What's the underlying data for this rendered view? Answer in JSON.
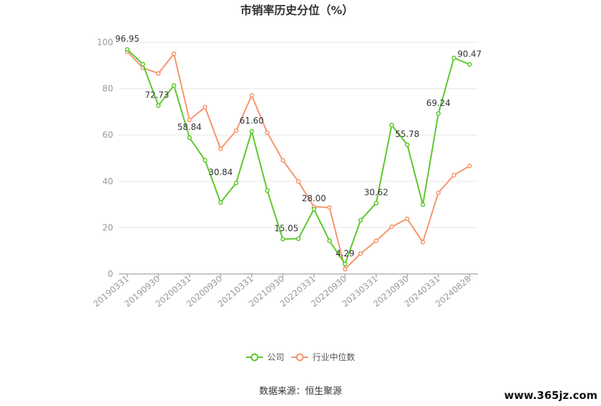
{
  "chart_data": {
    "type": "line",
    "title": "市销率历史分位（%）",
    "tick_labels": [
      "20190331",
      "20190930",
      "20200331",
      "20200930",
      "20210331",
      "20210930",
      "20220331",
      "20220930",
      "20230331",
      "20230930",
      "20240331",
      "20240828"
    ],
    "yticks": [
      "0",
      "20",
      "40",
      "60",
      "80",
      "100"
    ],
    "ylim": [
      0,
      100
    ],
    "grid": true,
    "legend_position": "bottom",
    "series": [
      {
        "name": "公司",
        "color": "#5cc72b",
        "values": [
          96.95,
          90.6,
          72.73,
          81.4,
          58.84,
          49.1,
          30.84,
          39.3,
          61.6,
          36.0,
          15.05,
          15.2,
          28.0,
          14.3,
          4.29,
          23.2,
          30.62,
          64.3,
          55.78,
          29.9,
          69.24,
          93.3,
          90.47
        ],
        "data_labels": [
          "96.95",
          "",
          "72.73",
          "",
          "58.84",
          "",
          "30.84",
          "",
          "61.60",
          "",
          "15.05",
          "",
          "28.00",
          "",
          "4.29",
          "",
          "30.62",
          "",
          "55.78",
          "",
          "69.24",
          "",
          "90.47"
        ]
      },
      {
        "name": "行业中位数",
        "color": "#f5956c",
        "values": [
          96.0,
          89.0,
          86.6,
          95.1,
          66.5,
          72.0,
          54.0,
          61.9,
          77.1,
          61.0,
          49.1,
          39.9,
          29.0,
          28.7,
          2.1,
          8.8,
          14.3,
          20.4,
          23.8,
          13.7,
          35.1,
          42.7,
          46.6
        ]
      }
    ]
  },
  "source": "数据来源：恒生聚源",
  "watermark": "www.365jz.com"
}
